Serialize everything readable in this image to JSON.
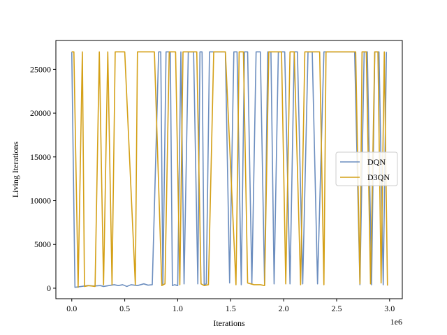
{
  "chart_data": {
    "type": "line",
    "title": "",
    "xlabel": "Iterations",
    "ylabel": "Living Iterations",
    "x_offset_label": "1e6",
    "xlim": [
      -0.15,
      3.12
    ],
    "ylim": [
      -1200,
      28300
    ],
    "x_ticks": [
      0.0,
      0.5,
      1.0,
      1.5,
      2.0,
      2.5,
      3.0
    ],
    "x_tick_labels": [
      "0.0",
      "0.5",
      "1.0",
      "1.5",
      "2.0",
      "2.5",
      "3.0"
    ],
    "y_ticks": [
      0,
      5000,
      10000,
      15000,
      20000,
      25000
    ],
    "y_tick_labels": [
      "0",
      "5000",
      "10000",
      "15000",
      "20000",
      "25000"
    ],
    "grid": false,
    "legend_position": "center-right",
    "series": [
      {
        "name": "DQN",
        "color": "#6c8ebf",
        "x": [
          0.0,
          0.03,
          0.09,
          0.15,
          0.21,
          0.27,
          0.3,
          0.35,
          0.4,
          0.44,
          0.48,
          0.52,
          0.56,
          0.62,
          0.68,
          0.72,
          0.76,
          0.82,
          0.84,
          0.86,
          0.89,
          0.93,
          0.95,
          0.97,
          1.0,
          1.03,
          1.06,
          1.1,
          1.15,
          1.19,
          1.21,
          1.23,
          1.25,
          1.27,
          1.3,
          1.36,
          1.42,
          1.45,
          1.49,
          1.53,
          1.56,
          1.6,
          1.63,
          1.66,
          1.7,
          1.74,
          1.78,
          1.82,
          1.85,
          1.88,
          1.91,
          1.95,
          2.01,
          2.06,
          2.1,
          2.13,
          2.18,
          2.23,
          2.27,
          2.32,
          2.38,
          2.44,
          2.5,
          2.56,
          2.6,
          2.67,
          2.72,
          2.76,
          2.79,
          2.83,
          2.86,
          2.9,
          2.94,
          2.97
        ],
        "y": [
          27000,
          100,
          200,
          300,
          250,
          300,
          200,
          300,
          400,
          300,
          400,
          200,
          400,
          300,
          500,
          350,
          400,
          27000,
          27000,
          400,
          27000,
          27000,
          300,
          400,
          300,
          27000,
          500,
          27000,
          27000,
          500,
          27000,
          27000,
          400,
          500,
          27000,
          27000,
          27000,
          27000,
          600,
          27000,
          27000,
          400,
          27000,
          27000,
          500,
          27000,
          27000,
          400,
          27000,
          27000,
          500,
          27000,
          27000,
          500,
          27000,
          27000,
          500,
          27000,
          27000,
          500,
          27000,
          27000,
          27000,
          27000,
          27000,
          27000,
          400,
          27000,
          27000,
          400,
          27000,
          27000,
          400,
          27000
        ]
      },
      {
        "name": "D3QN",
        "color": "#d4a017",
        "x": [
          0.0,
          0.02,
          0.06,
          0.1,
          0.12,
          0.16,
          0.22,
          0.26,
          0.3,
          0.34,
          0.38,
          0.41,
          0.45,
          0.5,
          0.6,
          0.62,
          0.66,
          0.7,
          0.78,
          0.85,
          0.88,
          0.92,
          0.98,
          1.02,
          1.05,
          1.08,
          1.12,
          1.18,
          1.22,
          1.25,
          1.29,
          1.34,
          1.38,
          1.45,
          1.55,
          1.58,
          1.62,
          1.66,
          1.72,
          1.78,
          1.82,
          1.86,
          1.92,
          1.98,
          2.02,
          2.06,
          2.1,
          2.16,
          2.2,
          2.24,
          2.3,
          2.34,
          2.38,
          2.4,
          2.44,
          2.46,
          2.5,
          2.54,
          2.58,
          2.62,
          2.68,
          2.72,
          2.74,
          2.78,
          2.82,
          2.86,
          2.89,
          2.92,
          2.95,
          2.98
        ],
        "y": [
          27000,
          27000,
          100,
          27000,
          200,
          300,
          200,
          27000,
          400,
          27000,
          400,
          27000,
          27000,
          27000,
          400,
          27000,
          27000,
          27000,
          27000,
          300,
          500,
          27000,
          27000,
          400,
          27000,
          27000,
          27000,
          27000,
          500,
          300,
          400,
          27000,
          27000,
          27000,
          400,
          27000,
          27000,
          600,
          400,
          400,
          300,
          27000,
          27000,
          27000,
          500,
          27000,
          27000,
          400,
          27000,
          27000,
          27000,
          27000,
          400,
          27000,
          27000,
          27000,
          27000,
          27000,
          27000,
          27000,
          27000,
          500,
          27000,
          27000,
          500,
          27000,
          27000,
          600,
          27000,
          300
        ]
      }
    ]
  }
}
